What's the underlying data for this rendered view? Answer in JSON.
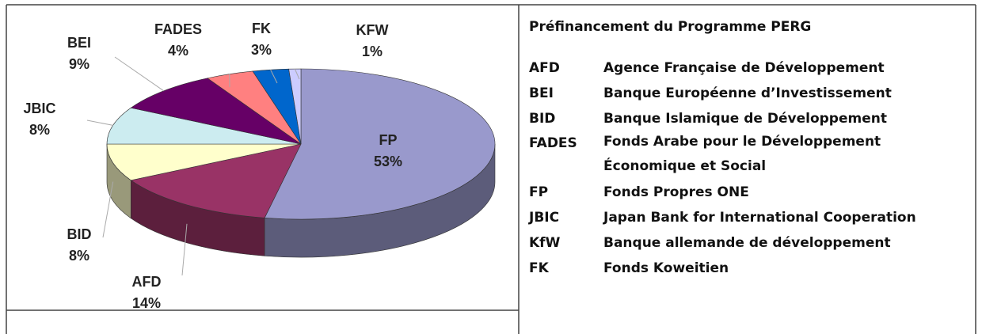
{
  "chart_data": {
    "type": "pie",
    "three_d": true,
    "categories": [
      "FP",
      "AFD",
      "BID",
      "JBIC",
      "BEI",
      "FADES",
      "FK",
      "KFW"
    ],
    "values": [
      53,
      14,
      8,
      8,
      9,
      4,
      3,
      1
    ],
    "value_labels": [
      "53%",
      "14%",
      "8%",
      "8%",
      "9%",
      "4%",
      "3%",
      "1%"
    ],
    "colors": [
      "#9999cc",
      "#993366",
      "#ffffcc",
      "#ccecf0",
      "#660066",
      "#ff8080",
      "#0066cc",
      "#ccccff"
    ]
  },
  "table": {
    "title": "Préfinancement du Programme PERG",
    "rows": [
      [
        "AFD",
        "Agence Française de Développement"
      ],
      [
        "BEI",
        "Banque Européenne d’Investissement"
      ],
      [
        "BID",
        "Banque Islamique de Développement"
      ],
      [
        "FADES",
        "Fonds Arabe pour le Développement Économique et Social"
      ],
      [
        "FP",
        "Fonds Propres ONE"
      ],
      [
        "JBIC",
        "Japan Bank for International Cooperation"
      ],
      [
        "KfW",
        "Banque allemande de développement"
      ],
      [
        "FK",
        "Fonds Koweitien"
      ]
    ]
  }
}
